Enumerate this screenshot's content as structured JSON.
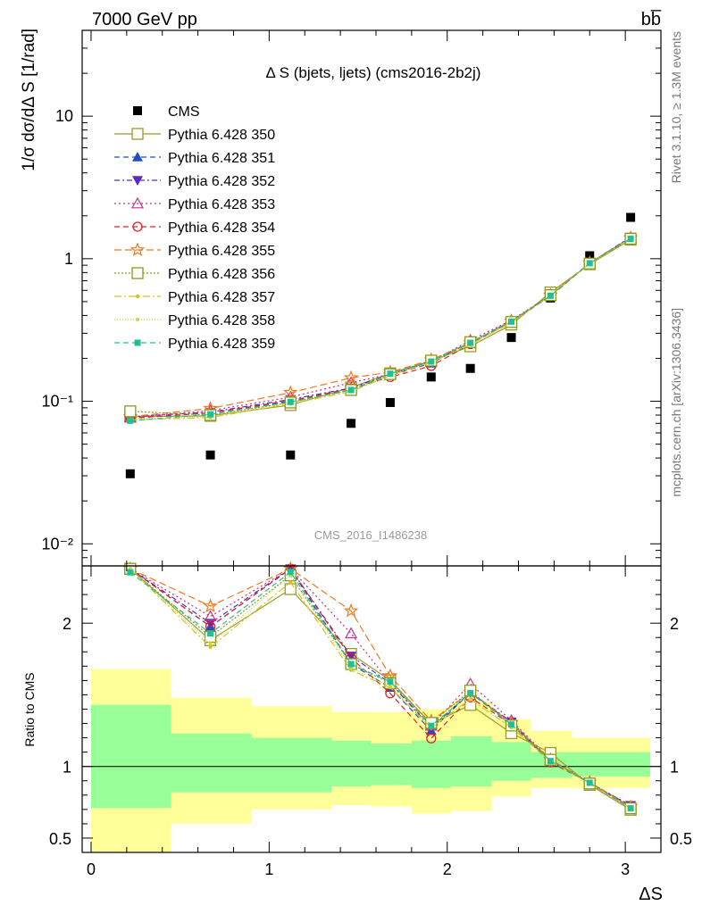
{
  "header": {
    "left": "7000 GeV pp",
    "right": "bb̅"
  },
  "side_labels": {
    "top": "Rivet 3.1.10, ≥ 1.3M events",
    "bottom": "mcplots.cern.ch [arXiv:1306.3436]"
  },
  "watermark": "CMS_2016_I1486238",
  "chart_data": {
    "type": "scatter",
    "title": "Δ S (bjets, ljets) (cms2016-2b2j)",
    "ylabel": "1/σ dσ/dΔ S [1/rad]",
    "xlabel": "ΔS",
    "yscale": "log",
    "ylim": [
      0.007,
      40
    ],
    "xlim": [
      -0.05,
      3.2
    ],
    "x_ticks": [
      "0",
      "1",
      "2",
      "3"
    ],
    "y_ticks": [
      "10⁻²",
      "10⁻¹",
      "1",
      "10"
    ],
    "legend": "top-left",
    "x": [
      0.22,
      0.67,
      1.12,
      1.46,
      1.68,
      1.91,
      2.13,
      2.36,
      2.58,
      2.8,
      3.03
    ],
    "data": {
      "name": "CMS",
      "color": "#000000",
      "marker": "square-filled",
      "values": [
        0.031,
        0.042,
        0.042,
        0.07,
        0.098,
        0.148,
        0.17,
        0.28,
        0.53,
        1.05,
        1.95
      ]
    },
    "series": [
      {
        "name": "Pythia 6.428 350",
        "color": "#9b9b28",
        "marker": "square-open",
        "dash": "solid",
        "values": [
          0.078,
          0.079,
          0.094,
          0.125,
          0.157,
          0.192,
          0.243,
          0.345,
          0.58,
          0.915,
          1.36
        ]
      },
      {
        "name": "Pythia 6.428 351",
        "color": "#1f4fbf",
        "marker": "triangle-up-filled",
        "dash": "6,4",
        "values": [
          0.076,
          0.083,
          0.1,
          0.12,
          0.152,
          0.185,
          0.258,
          0.365,
          0.55,
          0.93,
          1.41
        ]
      },
      {
        "name": "Pythia 6.428 352",
        "color": "#5b2bbf",
        "marker": "triangle-down-filled",
        "dash": "6,3,2,3",
        "values": [
          0.078,
          0.084,
          0.103,
          0.124,
          0.155,
          0.188,
          0.258,
          0.367,
          0.55,
          0.93,
          1.42
        ]
      },
      {
        "name": "Pythia 6.428 353",
        "color": "#c4308c",
        "marker": "triangle-up-open",
        "dash": "2,3",
        "values": [
          0.077,
          0.086,
          0.107,
          0.135,
          0.155,
          0.19,
          0.268,
          0.37,
          0.555,
          0.935,
          1.4
        ]
      },
      {
        "name": "Pythia 6.428 354",
        "color": "#e02020",
        "marker": "circle-open",
        "dash": "6,4",
        "values": [
          0.076,
          0.083,
          0.101,
          0.123,
          0.148,
          0.177,
          0.252,
          0.362,
          0.545,
          0.93,
          1.38
        ]
      },
      {
        "name": "Pythia 6.428 355",
        "color": "#f07820",
        "marker": "star-open",
        "dash": "8,4",
        "values": [
          0.078,
          0.089,
          0.115,
          0.146,
          0.16,
          0.195,
          0.258,
          0.365,
          0.555,
          0.935,
          1.4
        ]
      },
      {
        "name": "Pythia 6.428 356",
        "color": "#8a9a18",
        "marker": "square-open",
        "dash": "2,2",
        "values": [
          0.085,
          0.08,
          0.098,
          0.12,
          0.155,
          0.193,
          0.26,
          0.36,
          0.555,
          0.925,
          1.38
        ]
      },
      {
        "name": "Pythia 6.428 357",
        "color": "#d8c020",
        "marker": "dot",
        "dash": "8,3,2,3",
        "values": [
          0.074,
          0.077,
          0.096,
          0.117,
          0.152,
          0.188,
          0.25,
          0.356,
          0.55,
          0.925,
          1.38
        ]
      },
      {
        "name": "Pythia 6.428 358",
        "color": "#c8d838",
        "marker": "dot",
        "dash": "1,2",
        "values": [
          0.075,
          0.078,
          0.098,
          0.118,
          0.153,
          0.188,
          0.25,
          0.357,
          0.55,
          0.925,
          1.38
        ]
      },
      {
        "name": "Pythia 6.428 359",
        "color": "#20c090",
        "marker": "square-small-filled",
        "dash": "6,4",
        "values": [
          0.073,
          0.081,
          0.099,
          0.12,
          0.156,
          0.19,
          0.257,
          0.362,
          0.55,
          0.93,
          1.38
        ]
      }
    ],
    "ratio": {
      "ylabel": "Ratio to CMS",
      "ylim": [
        0.4,
        2.4
      ],
      "y_ticks": [
        "0.5",
        "1",
        "2"
      ],
      "reference_line": 1,
      "band_edges": [
        0,
        0.45,
        0.9,
        1.35,
        1.57,
        1.8,
        2.02,
        2.25,
        2.47,
        2.7,
        2.92,
        3.14
      ],
      "inner_band": [
        [
          0.71,
          1.43
        ],
        [
          0.82,
          1.23
        ],
        [
          0.82,
          1.2
        ],
        [
          0.86,
          1.18
        ],
        [
          0.87,
          1.16
        ],
        [
          0.85,
          1.18
        ],
        [
          0.86,
          1.21
        ],
        [
          0.9,
          1.17
        ],
        [
          0.92,
          1.1
        ],
        [
          0.93,
          1.1
        ],
        [
          0.93,
          1.1
        ]
      ],
      "outer_band": [
        [
          0.4,
          1.68
        ],
        [
          0.6,
          1.48
        ],
        [
          0.7,
          1.42
        ],
        [
          0.73,
          1.38
        ],
        [
          0.72,
          1.38
        ],
        [
          0.67,
          1.4
        ],
        [
          0.69,
          1.45
        ],
        [
          0.79,
          1.33
        ],
        [
          0.85,
          1.25
        ],
        [
          0.85,
          1.2
        ],
        [
          0.85,
          1.2
        ]
      ],
      "inner_color": "#99ff99",
      "outer_color": "#ffff99"
    }
  }
}
